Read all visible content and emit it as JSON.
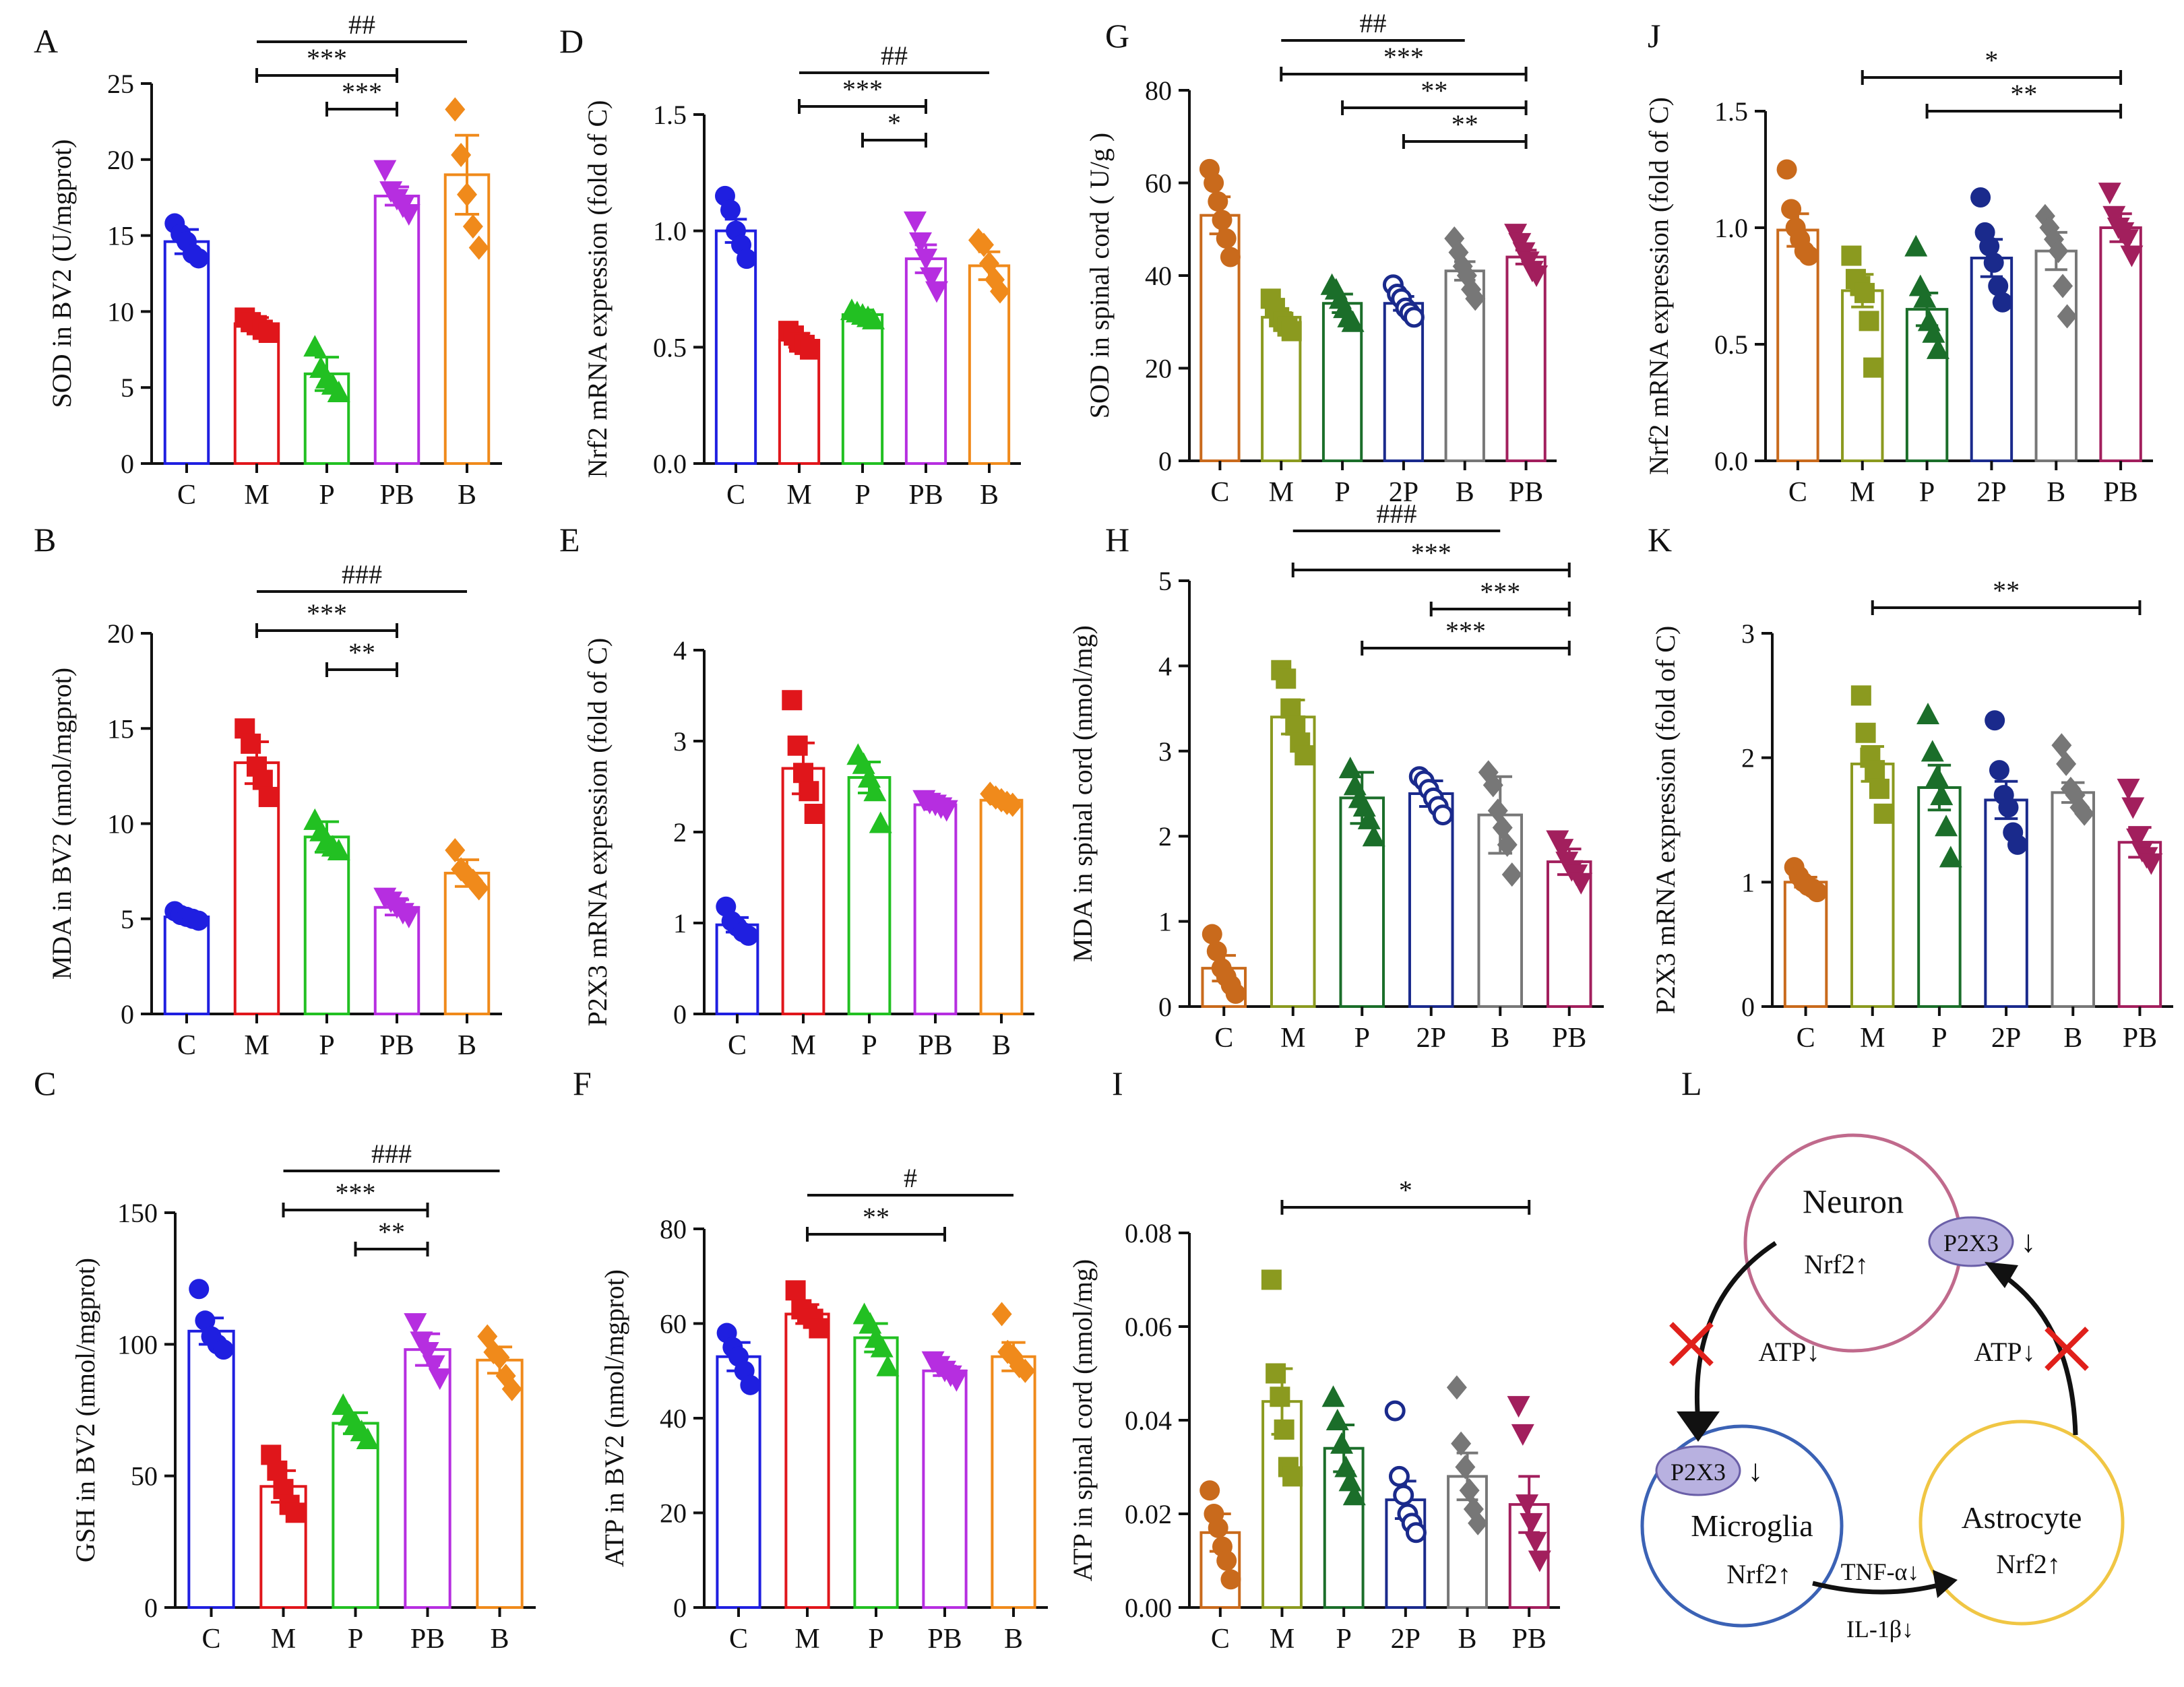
{
  "figure": {
    "panel_letters": [
      "A",
      "B",
      "C",
      "D",
      "E",
      "F",
      "G",
      "H",
      "I",
      "J",
      "K",
      "L"
    ]
  },
  "chart_data": [
    {
      "id": "A",
      "type": "bar",
      "ylabel": "SOD in BV2 (U/mgprot)",
      "ylim": [
        0,
        25
      ],
      "yticks": [
        0,
        5,
        10,
        15,
        20,
        25
      ],
      "yticklabels": [
        "0",
        "5",
        "10",
        "15",
        "20",
        "25"
      ],
      "categories": [
        "C",
        "M",
        "P",
        "PB",
        "B"
      ],
      "colors": [
        "#1f1fe0",
        "#e0161b",
        "#22c022",
        "#b62ee0",
        "#f08a1b"
      ],
      "markers": [
        "circle",
        "square",
        "triangle",
        "invtriangle",
        "diamond"
      ],
      "values": [
        14.6,
        9.2,
        5.9,
        17.6,
        19.0
      ],
      "errors": [
        0.8,
        0.4,
        1.1,
        0.6,
        2.6
      ],
      "points": [
        [
          15.8,
          15.1,
          14.6,
          13.8,
          13.5
        ],
        [
          9.6,
          9.3,
          9.1,
          8.8,
          8.6
        ],
        [
          7.7,
          6.3,
          5.6,
          5.2,
          4.7
        ],
        [
          19.3,
          17.9,
          17.4,
          16.9,
          16.4
        ],
        [
          23.3,
          20.3,
          17.7,
          15.6,
          14.2
        ]
      ],
      "sig": [
        {
          "a": 1,
          "b": 4,
          "label": "##"
        },
        {
          "a": 1,
          "b": 3,
          "label": "***"
        },
        {
          "a": 2,
          "b": 3,
          "label": "***"
        }
      ]
    },
    {
      "id": "B",
      "type": "bar",
      "ylabel": "MDA in BV2 (nmol/mgprot)",
      "ylim": [
        0,
        20
      ],
      "yticks": [
        0,
        5,
        10,
        15,
        20
      ],
      "yticklabels": [
        "0",
        "5",
        "10",
        "15",
        "20"
      ],
      "categories": [
        "C",
        "M",
        "P",
        "PB",
        "B"
      ],
      "colors": [
        "#1f1fe0",
        "#e0161b",
        "#22c022",
        "#b62ee0",
        "#f08a1b"
      ],
      "markers": [
        "circle",
        "square",
        "triangle",
        "invtriangle",
        "diamond"
      ],
      "values": [
        5.1,
        13.2,
        9.3,
        5.6,
        7.4
      ],
      "errors": [
        0.2,
        1.1,
        0.8,
        0.4,
        0.7
      ],
      "points": [
        [
          5.4,
          5.2,
          5.1,
          5.0,
          4.9
        ],
        [
          15.0,
          14.2,
          13.0,
          12.3,
          11.4
        ],
        [
          10.2,
          9.6,
          9.1,
          8.8,
          8.6
        ],
        [
          6.1,
          5.9,
          5.6,
          5.3,
          5.1
        ],
        [
          8.6,
          7.6,
          7.3,
          7.0,
          6.6
        ]
      ],
      "sig": [
        {
          "a": 1,
          "b": 4,
          "label": "###"
        },
        {
          "a": 1,
          "b": 3,
          "label": "***"
        },
        {
          "a": 2,
          "b": 3,
          "label": "**"
        }
      ]
    },
    {
      "id": "C",
      "type": "bar",
      "ylabel": "GSH in BV2 (nmol/mgprot)",
      "ylim": [
        0,
        150
      ],
      "yticks": [
        0,
        50,
        100,
        150
      ],
      "yticklabels": [
        "0",
        "50",
        "100",
        "150"
      ],
      "categories": [
        "C",
        "M",
        "P",
        "PB",
        "B"
      ],
      "colors": [
        "#1f1fe0",
        "#e0161b",
        "#22c022",
        "#b62ee0",
        "#f08a1b"
      ],
      "markers": [
        "circle",
        "square",
        "triangle",
        "invtriangle",
        "diamond"
      ],
      "values": [
        105,
        46,
        70,
        98,
        94
      ],
      "errors": [
        5,
        6,
        4,
        6,
        5
      ],
      "points": [
        [
          121,
          109,
          103,
          100,
          98
        ],
        [
          58,
          52,
          45,
          39,
          36
        ],
        [
          77,
          73,
          70,
          67,
          64
        ],
        [
          108,
          101,
          97,
          92,
          87
        ],
        [
          103,
          97,
          95,
          88,
          83
        ]
      ],
      "sig": [
        {
          "a": 1,
          "b": 4,
          "label": "###"
        },
        {
          "a": 1,
          "b": 3,
          "label": "***"
        },
        {
          "a": 2,
          "b": 3,
          "label": "**"
        }
      ]
    },
    {
      "id": "D",
      "type": "bar",
      "ylabel": "Nrf2 mRNA expression (fold of C)",
      "ylim": [
        0,
        1.5
      ],
      "yticks": [
        0,
        0.5,
        1.0,
        1.5
      ],
      "yticklabels": [
        "0.0",
        "0.5",
        "1.0",
        "1.5"
      ],
      "categories": [
        "C",
        "M",
        "P",
        "PB",
        "B"
      ],
      "colors": [
        "#1f1fe0",
        "#e0161b",
        "#22c022",
        "#b62ee0",
        "#f08a1b"
      ],
      "markers": [
        "circle",
        "square",
        "triangle",
        "invtriangle",
        "diamond"
      ],
      "values": [
        1.0,
        0.53,
        0.64,
        0.88,
        0.85
      ],
      "errors": [
        0.05,
        0.03,
        0.02,
        0.06,
        0.06
      ],
      "points": [
        [
          1.15,
          1.09,
          1.0,
          0.94,
          0.88
        ],
        [
          0.57,
          0.55,
          0.52,
          0.51,
          0.49
        ],
        [
          0.66,
          0.65,
          0.64,
          0.63,
          0.62
        ],
        [
          1.04,
          0.95,
          0.88,
          0.8,
          0.74
        ],
        [
          0.96,
          0.94,
          0.86,
          0.79,
          0.74
        ]
      ],
      "sig": [
        {
          "a": 1,
          "b": 4,
          "label": "##"
        },
        {
          "a": 1,
          "b": 3,
          "label": "***"
        },
        {
          "a": 2,
          "b": 3,
          "label": "*"
        }
      ]
    },
    {
      "id": "E",
      "type": "bar",
      "ylabel": "P2X3 mRNA expression (fold of C)",
      "ylim": [
        0,
        4
      ],
      "yticks": [
        0,
        1,
        2,
        3,
        4
      ],
      "yticklabels": [
        "0",
        "1",
        "2",
        "3",
        "4"
      ],
      "categories": [
        "C",
        "M",
        "P",
        "PB",
        "B"
      ],
      "colors": [
        "#1f1fe0",
        "#e0161b",
        "#22c022",
        "#b62ee0",
        "#f08a1b"
      ],
      "markers": [
        "circle",
        "square",
        "triangle",
        "invtriangle",
        "diamond"
      ],
      "values": [
        0.98,
        2.7,
        2.6,
        2.3,
        2.35
      ],
      "errors": [
        0.08,
        0.28,
        0.17,
        0.05,
        0.04
      ],
      "points": [
        [
          1.18,
          1.02,
          0.96,
          0.9,
          0.86
        ],
        [
          3.45,
          2.95,
          2.65,
          2.45,
          2.2
        ],
        [
          2.85,
          2.75,
          2.6,
          2.45,
          2.1
        ],
        [
          2.35,
          2.32,
          2.3,
          2.27,
          2.24
        ],
        [
          2.42,
          2.38,
          2.35,
          2.32,
          2.3
        ]
      ],
      "sig": []
    },
    {
      "id": "F",
      "type": "bar",
      "ylabel": "ATP in BV2 (nmol/mgprot)",
      "ylim": [
        0,
        80
      ],
      "yticks": [
        0,
        20,
        40,
        60,
        80
      ],
      "yticklabels": [
        "0",
        "20",
        "40",
        "60",
        "80"
      ],
      "categories": [
        "C",
        "M",
        "P",
        "PB",
        "B"
      ],
      "colors": [
        "#1f1fe0",
        "#e0161b",
        "#22c022",
        "#b62ee0",
        "#f08a1b"
      ],
      "markers": [
        "circle",
        "square",
        "triangle",
        "invtriangle",
        "diamond"
      ],
      "values": [
        53,
        62,
        57,
        50,
        53
      ],
      "errors": [
        3,
        2,
        3,
        1,
        3
      ],
      "points": [
        [
          58,
          55,
          53,
          50,
          47
        ],
        [
          67,
          63,
          62,
          61,
          59
        ],
        [
          62,
          60,
          57,
          55,
          51
        ],
        [
          52,
          51,
          50,
          49,
          48
        ],
        [
          62,
          54,
          53,
          51,
          50
        ]
      ],
      "sig": [
        {
          "a": 1,
          "b": 4,
          "label": "#"
        },
        {
          "a": 1,
          "b": 3,
          "label": "**"
        }
      ]
    },
    {
      "id": "G",
      "type": "bar",
      "ylabel": "SOD in spinal cord ( U/g )",
      "ylim": [
        0,
        80
      ],
      "yticks": [
        0,
        20,
        40,
        60,
        80
      ],
      "yticklabels": [
        "0",
        "20",
        "40",
        "60",
        "80"
      ],
      "categories": [
        "C",
        "M",
        "P",
        "2P",
        "B",
        "PB"
      ],
      "colors": [
        "#c96a1c",
        "#8b9a1f",
        "#1b6e2a",
        "#1a2a8c",
        "#777777",
        "#a21f5d"
      ],
      "markers": [
        "circle",
        "square",
        "triangle",
        "opencircle",
        "diamond",
        "invtriangle"
      ],
      "values": [
        53,
        31,
        34,
        34,
        41,
        44
      ],
      "errors": [
        4,
        1,
        2,
        1.5,
        2,
        1.5
      ],
      "points": [
        [
          63,
          60,
          56,
          52,
          48,
          44
        ],
        [
          35,
          33,
          31,
          30,
          29,
          28
        ],
        [
          38,
          37,
          35,
          33,
          31,
          30
        ],
        [
          38,
          36,
          35,
          33,
          32,
          31
        ],
        [
          48,
          45,
          42,
          40,
          37,
          35
        ],
        [
          49,
          47,
          45,
          43,
          41,
          40
        ]
      ],
      "sig": [
        {
          "a": 1,
          "b": 4,
          "label": "##"
        },
        {
          "a": 1,
          "b": 5,
          "label": "***"
        },
        {
          "a": 2,
          "b": 5,
          "label": "**"
        },
        {
          "a": 3,
          "b": 5,
          "label": "**"
        }
      ]
    },
    {
      "id": "H",
      "type": "bar",
      "ylabel": "MDA in spinal cord (nmol/mg)",
      "ylim": [
        0,
        5
      ],
      "yticks": [
        0,
        1,
        2,
        3,
        4,
        5
      ],
      "yticklabels": [
        "0",
        "1",
        "2",
        "3",
        "4",
        "5"
      ],
      "categories": [
        "C",
        "M",
        "P",
        "2P",
        "B",
        "PB"
      ],
      "colors": [
        "#c96a1c",
        "#8b9a1f",
        "#1b6e2a",
        "#1a2a8c",
        "#777777",
        "#a21f5d"
      ],
      "markers": [
        "circle",
        "square",
        "triangle",
        "opencircle",
        "diamond",
        "invtriangle"
      ],
      "values": [
        0.45,
        3.4,
        2.45,
        2.5,
        2.25,
        1.7
      ],
      "errors": [
        0.15,
        0.2,
        0.3,
        0.15,
        0.45,
        0.15
      ],
      "points": [
        [
          0.85,
          0.65,
          0.45,
          0.35,
          0.25,
          0.15
        ],
        [
          3.95,
          3.85,
          3.5,
          3.3,
          3.1,
          2.95
        ],
        [
          2.8,
          2.6,
          2.45,
          2.35,
          2.2,
          2.0
        ],
        [
          2.7,
          2.65,
          2.55,
          2.45,
          2.35,
          2.25
        ],
        [
          2.75,
          2.6,
          2.3,
          2.1,
          1.9,
          1.55
        ],
        [
          1.95,
          1.85,
          1.7,
          1.6,
          1.55,
          1.45
        ]
      ],
      "sig": [
        {
          "a": 1,
          "b": 4,
          "label": "###"
        },
        {
          "a": 1,
          "b": 5,
          "label": "***"
        },
        {
          "a": 3,
          "b": 5,
          "label": "***"
        },
        {
          "a": 2,
          "b": 5,
          "label": "***"
        }
      ]
    },
    {
      "id": "I",
      "type": "bar",
      "ylabel": "ATP in spinal cord (nmol/mg)",
      "ylim": [
        0,
        0.08
      ],
      "yticks": [
        0,
        0.02,
        0.04,
        0.06,
        0.08
      ],
      "yticklabels": [
        "0.00",
        "0.02",
        "0.04",
        "0.06",
        "0.08"
      ],
      "categories": [
        "C",
        "M",
        "P",
        "2P",
        "B",
        "PB"
      ],
      "colors": [
        "#c96a1c",
        "#8b9a1f",
        "#1b6e2a",
        "#1a2a8c",
        "#777777",
        "#a21f5d"
      ],
      "markers": [
        "circle",
        "square",
        "triangle",
        "opencircle",
        "diamond",
        "invtriangle"
      ],
      "values": [
        0.016,
        0.044,
        0.034,
        0.023,
        0.028,
        0.022
      ],
      "errors": [
        0.004,
        0.007,
        0.005,
        0.004,
        0.005,
        0.006
      ],
      "points": [
        [
          0.025,
          0.02,
          0.017,
          0.013,
          0.01,
          0.006
        ],
        [
          0.07,
          0.05,
          0.045,
          0.038,
          0.03,
          0.028
        ],
        [
          0.045,
          0.04,
          0.035,
          0.03,
          0.027,
          0.024
        ],
        [
          0.042,
          0.028,
          0.024,
          0.02,
          0.018,
          0.016
        ],
        [
          0.047,
          0.035,
          0.03,
          0.025,
          0.021,
          0.018
        ],
        [
          0.043,
          0.037,
          0.022,
          0.018,
          0.014,
          0.01
        ]
      ],
      "sig": [
        {
          "a": 1,
          "b": 5,
          "label": "*"
        }
      ]
    },
    {
      "id": "J",
      "type": "bar",
      "ylabel": "Nrf2 mRNA expression (fold of C)",
      "ylim": [
        0,
        1.5
      ],
      "yticks": [
        0,
        0.5,
        1.0,
        1.5
      ],
      "yticklabels": [
        "0.0",
        "0.5",
        "1.0",
        "1.5"
      ],
      "categories": [
        "C",
        "M",
        "P",
        "2P",
        "B",
        "PB"
      ],
      "colors": [
        "#c96a1c",
        "#8b9a1f",
        "#1b6e2a",
        "#1a2a8c",
        "#777777",
        "#a21f5d"
      ],
      "markers": [
        "circle",
        "square",
        "triangle",
        "filledcircle",
        "diamond",
        "invtriangle"
      ],
      "values": [
        0.99,
        0.73,
        0.65,
        0.87,
        0.9,
        1.0
      ],
      "errors": [
        0.07,
        0.07,
        0.07,
        0.08,
        0.08,
        0.06
      ],
      "points": [
        [
          1.25,
          1.08,
          1.0,
          0.95,
          0.9,
          0.88
        ],
        [
          0.88,
          0.78,
          0.75,
          0.72,
          0.6,
          0.4
        ],
        [
          0.92,
          0.75,
          0.7,
          0.6,
          0.55,
          0.48
        ],
        [
          1.13,
          0.98,
          0.92,
          0.85,
          0.75,
          0.68
        ],
        [
          1.05,
          1.0,
          0.95,
          0.9,
          0.75,
          0.62
        ],
        [
          1.15,
          1.05,
          1.0,
          0.98,
          0.95,
          0.88
        ]
      ],
      "sig": [
        {
          "a": 1,
          "b": 5,
          "label": "*"
        },
        {
          "a": 2,
          "b": 5,
          "label": "**"
        }
      ]
    },
    {
      "id": "K",
      "type": "bar",
      "ylabel": "P2X3 mRNA expression (fold of C)",
      "ylim": [
        0,
        3
      ],
      "yticks": [
        0,
        1,
        2,
        3
      ],
      "yticklabels": [
        "0",
        "1",
        "2",
        "3"
      ],
      "categories": [
        "C",
        "M",
        "P",
        "2P",
        "B",
        "PB"
      ],
      "colors": [
        "#c96a1c",
        "#8b9a1f",
        "#1b6e2a",
        "#1a2a8c",
        "#777777",
        "#a21f5d"
      ],
      "markers": [
        "circle",
        "square",
        "triangle",
        "filledcircle",
        "diamond",
        "invtriangle"
      ],
      "values": [
        1.0,
        1.95,
        1.76,
        1.66,
        1.72,
        1.32
      ],
      "errors": [
        0.04,
        0.14,
        0.18,
        0.15,
        0.08,
        0.12
      ],
      "points": [
        [
          1.12,
          1.05,
          1.0,
          0.97,
          0.95,
          0.92
        ],
        [
          2.5,
          2.2,
          2.0,
          1.9,
          1.75,
          1.55
        ],
        [
          2.35,
          2.05,
          1.85,
          1.7,
          1.45,
          1.2
        ],
        [
          2.3,
          1.9,
          1.7,
          1.6,
          1.4,
          1.3
        ],
        [
          2.1,
          1.95,
          1.75,
          1.7,
          1.6,
          1.55
        ],
        [
          1.75,
          1.6,
          1.35,
          1.25,
          1.2,
          1.15
        ]
      ],
      "sig": [
        {
          "a": 1,
          "b": 5,
          "label": "**"
        }
      ]
    }
  ],
  "diagram": {
    "letter": "L",
    "neuron": {
      "name": "Neuron",
      "nrf2": "Nrf2↑",
      "receptor": "P2X3",
      "receptor_arrow": "↓"
    },
    "microglia": {
      "name": "Microglia",
      "nrf2": "Nrf2↑",
      "receptor": "P2X3",
      "receptor_arrow": "↓"
    },
    "astrocyte": {
      "name": "Astrocyte",
      "nrf2": "Nrf2↑"
    },
    "atp_left": "ATP↓",
    "atp_right": "ATP↓",
    "tnf": "TNF-α↓",
    "il": "IL-1β↓",
    "colors": {
      "neuron": "#c06a8c",
      "microglia": "#3b62b5",
      "astrocyte": "#f0c644",
      "receptor": "#b8b1e0",
      "cross": "#e0201b"
    }
  }
}
